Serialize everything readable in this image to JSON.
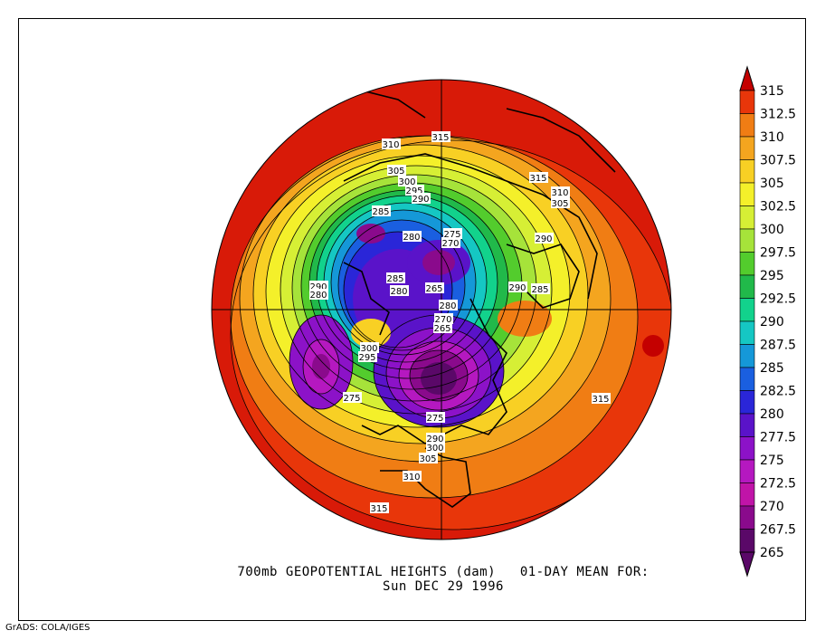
{
  "title": {
    "line1": "700mb GEOPOTENTIAL HEIGHTS (dam)   01-DAY MEAN FOR:",
    "line2": "Sun DEC 29 1996"
  },
  "credit": "GrADS: COLA/IGES",
  "colorbar": {
    "labels": [
      "315",
      "312.5",
      "310",
      "307.5",
      "305",
      "302.5",
      "300",
      "297.5",
      "295",
      "292.5",
      "290",
      "287.5",
      "285",
      "282.5",
      "280",
      "277.5",
      "275",
      "272.5",
      "270",
      "267.5",
      "265"
    ],
    "colors": [
      "#c40000",
      "#e8360a",
      "#f07d14",
      "#f4a51f",
      "#f8d024",
      "#f4f02a",
      "#d6ef35",
      "#a6e33a",
      "#53cc2d",
      "#21b94a",
      "#12d28c",
      "#15c7c3",
      "#1598d8",
      "#1a5fe0",
      "#2a26d8",
      "#5a13c9",
      "#8c12c8",
      "#b518c0",
      "#c014a8",
      "#8a0a8c",
      "#5a0868"
    ],
    "top_arrow_color": "#c40000",
    "bottom_arrow_color": "#5a0868"
  },
  "contour_labels": [
    {
      "text": "310"
    },
    {
      "text": "315"
    },
    {
      "text": "315"
    },
    {
      "text": "310"
    },
    {
      "text": "305"
    },
    {
      "text": "305"
    },
    {
      "text": "300"
    },
    {
      "text": "295"
    },
    {
      "text": "290"
    },
    {
      "text": "285"
    },
    {
      "text": "280"
    },
    {
      "text": "275"
    },
    {
      "text": "270"
    },
    {
      "text": "290"
    },
    {
      "text": "285"
    },
    {
      "text": "290"
    },
    {
      "text": "280"
    },
    {
      "text": "285"
    },
    {
      "text": "290"
    },
    {
      "text": "265"
    },
    {
      "text": "280"
    },
    {
      "text": "280"
    },
    {
      "text": "270"
    },
    {
      "text": "265"
    },
    {
      "text": "300"
    },
    {
      "text": "295"
    },
    {
      "text": "275"
    },
    {
      "text": "315"
    },
    {
      "text": "275"
    },
    {
      "text": "290"
    },
    {
      "text": "300"
    },
    {
      "text": "305"
    },
    {
      "text": "310"
    },
    {
      "text": "315"
    }
  ]
}
